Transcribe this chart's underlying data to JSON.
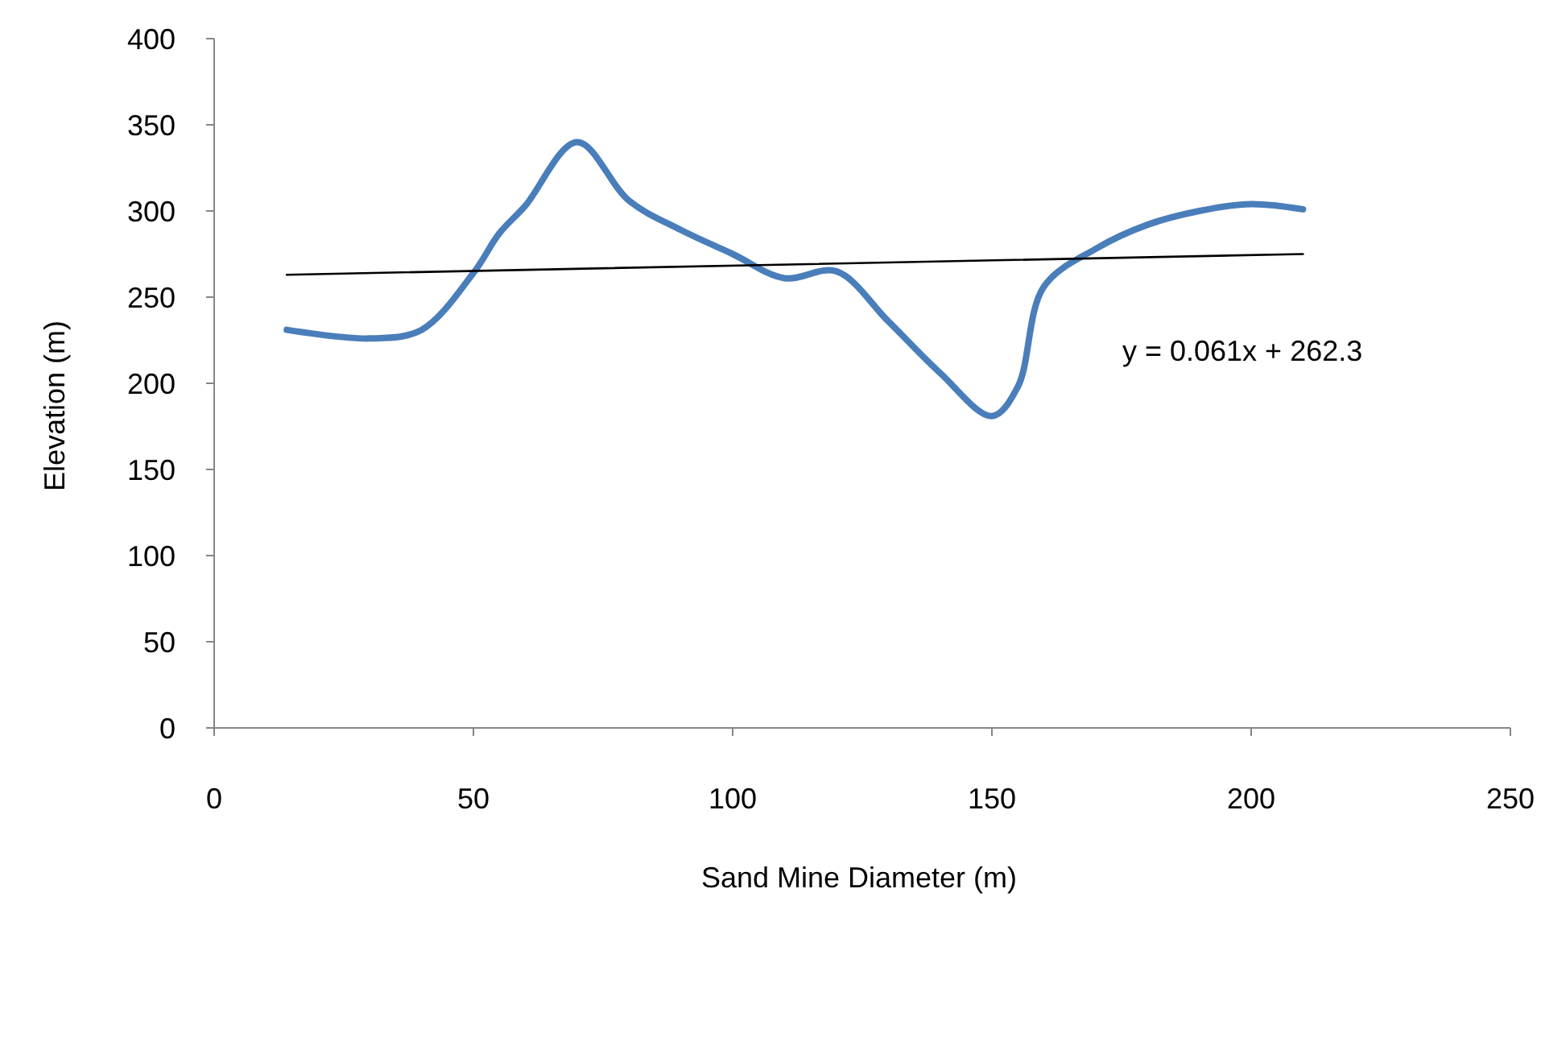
{
  "chart_data": {
    "type": "line",
    "xlabel": "Sand Mine Diameter (m)",
    "ylabel": "Elevation (m)",
    "xlim": [
      0,
      250
    ],
    "xticks": [
      0,
      50,
      100,
      150,
      200,
      250
    ],
    "ylim": [
      0,
      400
    ],
    "yticks": [
      0,
      50,
      100,
      150,
      200,
      250,
      300,
      350,
      400
    ],
    "grid": false,
    "marker": "none",
    "series": [
      {
        "color": "#4a7ebb",
        "x": [
          14,
          30,
          40,
          50,
          55,
          60,
          70,
          80,
          90,
          100,
          110,
          120,
          130,
          140,
          150,
          155,
          160,
          170,
          180,
          190,
          200,
          210
        ],
        "values": [
          231,
          226,
          231,
          264,
          287,
          303,
          340,
          306,
          289,
          275,
          261,
          265,
          236,
          206,
          181,
          198,
          256,
          278,
          292,
          300,
          304,
          301
        ]
      },
      {
        "type": "line",
        "color": "#000000",
        "x": [
          14,
          210
        ],
        "values": [
          263,
          275
        ]
      }
    ],
    "annotations": [
      "y = 0.061x + 262.3"
    ]
  }
}
